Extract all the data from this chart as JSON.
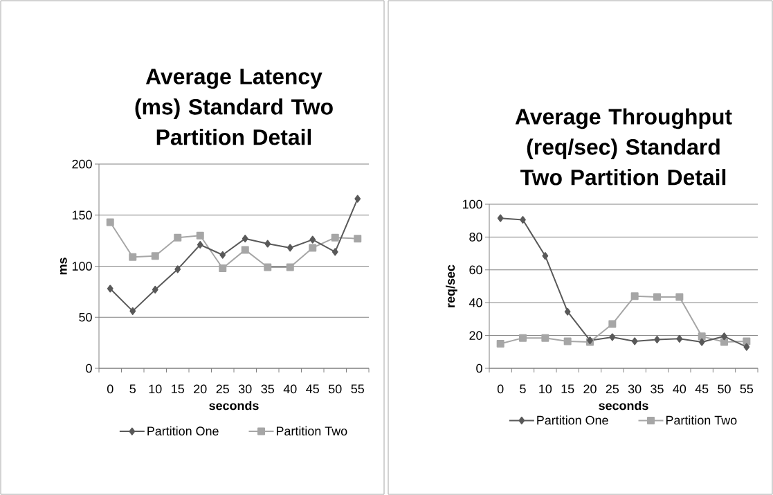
{
  "chart_data": [
    {
      "type": "line",
      "title": "Average Latency (ms) Standard Two Partition Detail",
      "xlabel": "seconds",
      "ylabel": "ms",
      "categories": [
        "0",
        "5",
        "10",
        "15",
        "20",
        "25",
        "30",
        "35",
        "40",
        "45",
        "50",
        "55"
      ],
      "series": [
        {
          "name": "Partition One",
          "color": "#595959",
          "marker": "diamond",
          "values": [
            78,
            56,
            77,
            97,
            121,
            111,
            127,
            122,
            118,
            126,
            114,
            166
          ]
        },
        {
          "name": "Partition Two",
          "color": "#a6a6a6",
          "marker": "square",
          "values": [
            143,
            109,
            110,
            128,
            130,
            98,
            116,
            99,
            99,
            118,
            128,
            127
          ]
        }
      ],
      "ylim": [
        0,
        200
      ],
      "yticks": [
        0,
        50,
        100,
        150,
        200
      ],
      "grid": "y",
      "legend": "bottom"
    },
    {
      "type": "line",
      "title": "Average Throughput (req/sec) Standard Two Partition Detail",
      "xlabel": "seconds",
      "ylabel": "req/sec",
      "categories": [
        "0",
        "5",
        "10",
        "15",
        "20",
        "25",
        "30",
        "35",
        "40",
        "45",
        "50",
        "55"
      ],
      "series": [
        {
          "name": "Partition One",
          "color": "#595959",
          "marker": "diamond",
          "values": [
            91.5,
            90.5,
            68.5,
            34.5,
            17,
            19,
            16.5,
            17.5,
            18,
            16,
            19.5,
            13
          ]
        },
        {
          "name": "Partition Two",
          "color": "#a6a6a6",
          "marker": "square",
          "values": [
            15,
            18.5,
            18.5,
            16.5,
            16,
            27,
            44,
            43.5,
            43.5,
            19.5,
            16,
            16.5
          ]
        }
      ],
      "ylim": [
        0,
        100
      ],
      "yticks": [
        0,
        20,
        40,
        60,
        80,
        100
      ],
      "grid": "y",
      "legend": "bottom"
    }
  ]
}
